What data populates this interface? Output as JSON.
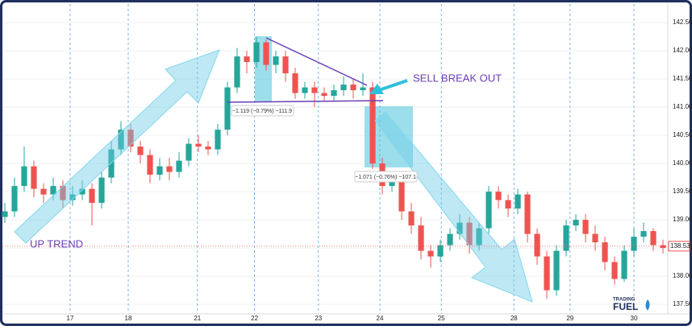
{
  "chart_data": {
    "type": "candlestick",
    "up_color": "#26a69a",
    "down_color": "#ef5350",
    "xlim": [
      -0.5,
      68.5
    ],
    "xticks": [
      {
        "value": 6.75,
        "label": "17"
      },
      {
        "value": 12.75,
        "label": "18"
      },
      {
        "value": 19.9,
        "label": "21"
      },
      {
        "value": 25.8,
        "label": "22"
      },
      {
        "value": 32.4,
        "label": "23"
      },
      {
        "value": 38.75,
        "label": "24"
      },
      {
        "value": 45.1,
        "label": "25"
      },
      {
        "value": 52.6,
        "label": "28"
      },
      {
        "value": 58.4,
        "label": "29"
      },
      {
        "value": 65,
        "label": "30"
      }
    ],
    "ylim": [
      137.33,
      142.83
    ],
    "yticks": [
      {
        "value": 137.5,
        "label": "137.500"
      },
      {
        "value": 138,
        "label": "138.000"
      },
      {
        "value": 138.5,
        "label": "138.500"
      },
      {
        "value": 139,
        "label": "139.000"
      },
      {
        "value": 139.5,
        "label": "139.500"
      },
      {
        "value": 140,
        "label": "140.000"
      },
      {
        "value": 140.5,
        "label": "140.500"
      },
      {
        "value": 141,
        "label": "141.000"
      },
      {
        "value": 141.5,
        "label": "141.500"
      },
      {
        "value": 142,
        "label": "142.000"
      },
      {
        "value": 142.5,
        "label": "142.500"
      }
    ],
    "grid": true,
    "open": [
      139.05,
      139.15,
      139.6,
      139.95,
      139.55,
      139.45,
      139.6,
      139.35,
      139.45,
      139.55,
      139.3,
      139.75,
      140.25,
      140.6,
      140.3,
      140.15,
      139.8,
      139.95,
      139.85,
      140.05,
      140.35,
      140.3,
      140.25,
      140.6,
      141.35,
      141.9,
      141.8,
      142.15,
      141.75,
      141.9,
      141.6,
      141.25,
      141.35,
      141.25,
      141.2,
      141.3,
      141.4,
      141.3,
      141.35,
      140.0,
      139.6,
      139.75,
      139.15,
      138.9,
      138.45,
      138.35,
      138.55,
      138.75,
      138.95,
      138.55,
      138.85,
      139.5,
      139.35,
      139.2,
      139.45,
      138.75,
      138.35,
      137.75,
      138.45,
      138.9,
      139.0,
      138.75,
      138.6,
      138.25,
      137.95,
      138.45,
      138.7,
      138.8,
      138.55
    ],
    "high": [
      139.3,
      139.75,
      140.3,
      140.05,
      139.65,
      139.75,
      139.7,
      139.6,
      139.7,
      139.65,
      139.85,
      140.4,
      140.75,
      140.7,
      140.4,
      140.25,
      140.1,
      140.1,
      140.2,
      140.45,
      140.5,
      140.4,
      140.7,
      141.45,
      142.05,
      142.0,
      142.25,
      142.2,
      142.0,
      142.0,
      141.7,
      141.45,
      141.45,
      141.35,
      141.4,
      141.55,
      141.5,
      141.6,
      141.45,
      140.1,
      139.85,
      139.85,
      139.3,
      139.05,
      138.55,
      138.65,
      138.85,
      139.1,
      139.05,
      138.95,
      139.6,
      139.6,
      139.45,
      139.55,
      139.5,
      138.85,
      138.45,
      138.55,
      139.0,
      139.1,
      139.1,
      138.9,
      138.7,
      138.35,
      138.55,
      138.85,
      138.95,
      138.85,
      138.65
    ],
    "low": [
      138.95,
      139.05,
      139.5,
      139.4,
      139.3,
      139.35,
      139.2,
      139.25,
      139.35,
      138.9,
      139.2,
      139.65,
      140.15,
      140.2,
      140.0,
      139.65,
      139.7,
      139.7,
      139.75,
      139.95,
      140.2,
      140.15,
      140.15,
      140.5,
      141.25,
      141.6,
      141.7,
      141.65,
      141.6,
      141.45,
      141.15,
      141.15,
      141.0,
      141.1,
      141.1,
      141.2,
      141.15,
      141.2,
      139.9,
      139.45,
      139.5,
      139.0,
      138.75,
      138.3,
      138.15,
      138.25,
      138.45,
      138.65,
      138.4,
      138.45,
      138.75,
      139.2,
      139.05,
      139.1,
      138.6,
      138.2,
      137.6,
      137.65,
      138.35,
      138.8,
      138.6,
      138.45,
      138.1,
      137.85,
      137.9,
      138.35,
      138.6,
      138.45,
      138.4
    ],
    "close": [
      139.15,
      139.6,
      139.95,
      139.55,
      139.45,
      139.6,
      139.35,
      139.45,
      139.55,
      139.3,
      139.75,
      140.25,
      140.6,
      140.3,
      140.15,
      139.8,
      139.95,
      139.85,
      140.05,
      140.35,
      140.3,
      140.25,
      140.6,
      141.35,
      141.9,
      141.8,
      142.15,
      141.75,
      141.9,
      141.6,
      141.25,
      141.35,
      141.25,
      141.2,
      141.3,
      141.4,
      141.3,
      141.35,
      140.0,
      139.6,
      139.75,
      139.15,
      138.9,
      138.45,
      138.35,
      138.55,
      138.75,
      138.95,
      138.55,
      138.85,
      139.5,
      139.35,
      139.2,
      139.45,
      138.75,
      138.35,
      137.75,
      138.45,
      138.9,
      139.0,
      138.75,
      138.6,
      138.25,
      137.95,
      138.45,
      138.7,
      138.8,
      138.55,
      138.5
    ],
    "last_price": 138.532,
    "annotations": [
      "UP TREND",
      "SELL BREAK OUT",
      "−1.119 (−0.79%) −111.9",
      "−1.071 (−0.76%) −107.1"
    ]
  },
  "brand": [
    "TRADING",
    "FUEL"
  ]
}
